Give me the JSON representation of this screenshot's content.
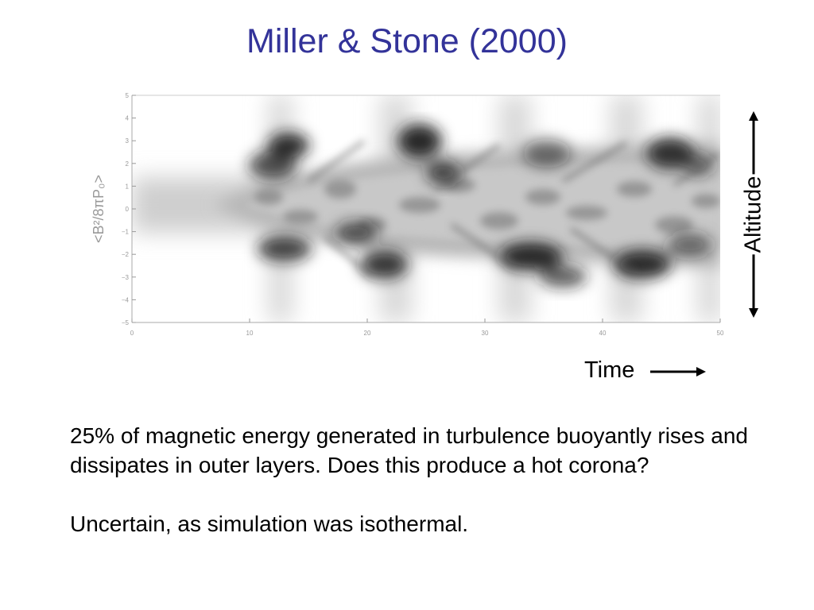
{
  "slide": {
    "title": "Miller & Stone (2000)",
    "paragraphs": [
      "25% of magnetic energy generated in turbulence buoyantly rises and dissipates in outer layers.  Does this produce a hot corona?",
      "Uncertain, as simulation was isothermal."
    ]
  },
  "figure": {
    "y_axis_label": "<B²/8πP₀>",
    "x_ticks": [
      "0",
      "10",
      "20",
      "30",
      "40",
      "50"
    ],
    "y_ticks": [
      "5",
      "4",
      "3",
      "2",
      "1",
      "0",
      "−1",
      "−2",
      "−3",
      "−4",
      "−5"
    ],
    "x_range": [
      0,
      50
    ],
    "y_range": [
      -5,
      5
    ],
    "colormap": "grayscale"
  },
  "annotations": {
    "altitude_label": "Altitude",
    "time_label": "Time"
  },
  "colors": {
    "title": "#333399",
    "text": "#000000",
    "axis": "#999999"
  }
}
